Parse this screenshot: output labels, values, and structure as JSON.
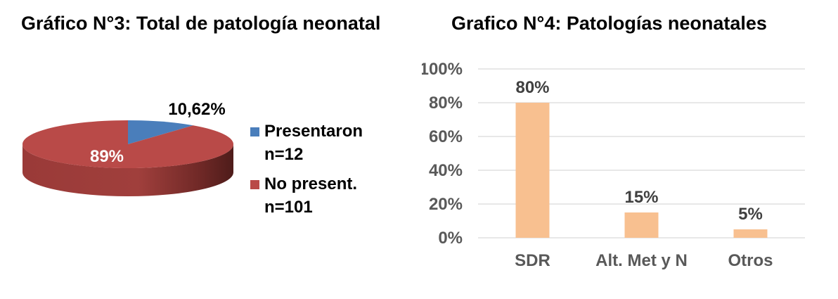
{
  "chart_data": [
    {
      "type": "pie",
      "title": "Gráfico N°3: Total de patología neonatal",
      "slices": [
        {
          "label_line1": "Presentaron",
          "label_line2": "n=12",
          "value": 10.62,
          "data_label": "10,62%",
          "color": "#4a7ebb"
        },
        {
          "label_line1": "No present.",
          "label_line2": "n=101",
          "value": 89.38,
          "data_label": "89%",
          "color": "#b94a48"
        }
      ],
      "legend": "right"
    },
    {
      "type": "bar",
      "title": "Grafico N°4: Patologías neonatales",
      "categories": [
        "SDR",
        "Alt. Met y N",
        "Otros"
      ],
      "values": [
        80,
        15,
        5
      ],
      "data_labels": [
        "80%",
        "15%",
        "5%"
      ],
      "ylim": [
        0,
        100
      ],
      "yticks": [
        0,
        20,
        40,
        60,
        80,
        100
      ],
      "ytick_labels": [
        "0%",
        "20%",
        "40%",
        "60%",
        "80%",
        "100%"
      ],
      "grid": true,
      "bar_color": "#f8c090",
      "grid_color": "#d9d9d9"
    }
  ]
}
